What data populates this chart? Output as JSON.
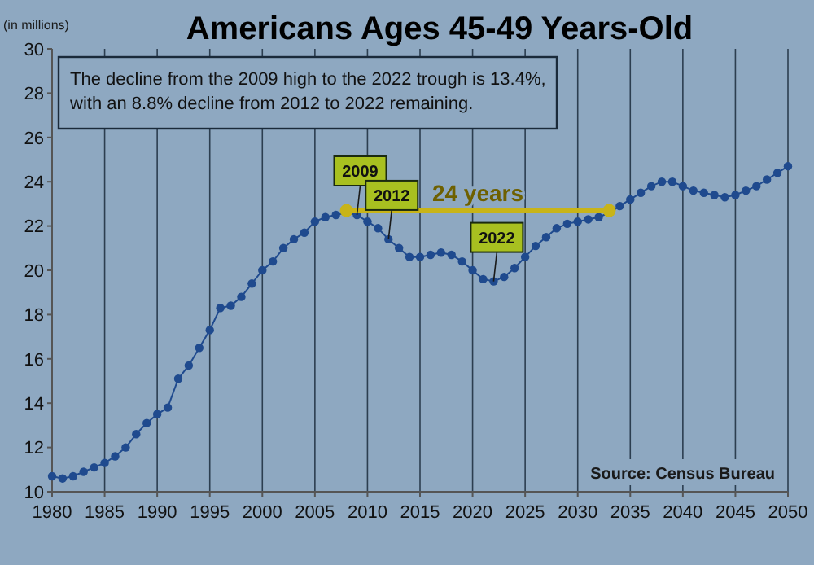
{
  "chart_data": {
    "type": "line",
    "title": "Americans Ages 45-49 Years-Old",
    "ylabel": "(in millions)",
    "x": [
      1980,
      1981,
      1982,
      1983,
      1984,
      1985,
      1986,
      1987,
      1988,
      1989,
      1990,
      1991,
      1992,
      1993,
      1994,
      1995,
      1996,
      1997,
      1998,
      1999,
      2000,
      2001,
      2002,
      2003,
      2004,
      2005,
      2006,
      2007,
      2008,
      2009,
      2010,
      2011,
      2012,
      2013,
      2014,
      2015,
      2016,
      2017,
      2018,
      2019,
      2020,
      2021,
      2022,
      2023,
      2024,
      2025,
      2026,
      2027,
      2028,
      2029,
      2030,
      2031,
      2032,
      2033,
      2034,
      2035,
      2036,
      2037,
      2038,
      2039,
      2040,
      2041,
      2042,
      2043,
      2044,
      2045,
      2046,
      2047,
      2048,
      2049,
      2050
    ],
    "series": [
      {
        "color": "#1f4a8e",
        "marker": "circle",
        "values": [
          10.7,
          10.6,
          10.7,
          10.9,
          11.1,
          11.3,
          11.6,
          12.0,
          12.6,
          13.1,
          13.5,
          13.8,
          15.1,
          15.7,
          16.5,
          17.3,
          18.3,
          18.4,
          18.8,
          19.4,
          20.0,
          20.4,
          21.0,
          21.4,
          21.7,
          22.2,
          22.4,
          22.5,
          22.6,
          22.5,
          22.2,
          21.9,
          21.4,
          21.0,
          20.6,
          20.6,
          20.7,
          20.8,
          20.7,
          20.4,
          20.0,
          19.6,
          19.5,
          19.7,
          20.1,
          20.6,
          21.1,
          21.5,
          21.9,
          22.1,
          22.2,
          22.3,
          22.4,
          22.6,
          22.9,
          23.2,
          23.5,
          23.8,
          24.0,
          24.0,
          23.8,
          23.6,
          23.5,
          23.4,
          23.3,
          23.4,
          23.6,
          23.8,
          24.1,
          24.4,
          24.7
        ]
      },
      {
        "color": "#c8b418",
        "marker": "circle",
        "x": [
          2008,
          2033
        ],
        "values": [
          22.7,
          22.7
        ]
      }
    ],
    "xlim": [
      1980,
      2050
    ],
    "xticks": [
      1980,
      1985,
      1990,
      1995,
      2000,
      2005,
      2010,
      2015,
      2020,
      2025,
      2030,
      2035,
      2040,
      2045,
      2050
    ],
    "ylim": [
      10,
      30
    ],
    "yticks": [
      10,
      12,
      14,
      16,
      18,
      20,
      22,
      24,
      26,
      28,
      30
    ],
    "grid": "x",
    "annotations": [
      "The decline from the 2009 high to the 2022  trough is 13.4%, with an 8.8% decline from 2012 to 2022  remaining.",
      {
        "text": "2009",
        "x": 2009,
        "y": 22.5
      },
      {
        "text": "2012",
        "x": 2012,
        "y": 21.4
      },
      {
        "text": "2022",
        "x": 2022,
        "y": 19.5
      },
      {
        "text": "24 years",
        "x": 2020.5,
        "y": 22.7
      },
      "Source: Census Bureau"
    ]
  }
}
